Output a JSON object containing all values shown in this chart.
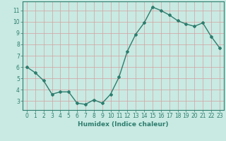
{
  "x": [
    0,
    1,
    2,
    3,
    4,
    5,
    6,
    7,
    8,
    9,
    10,
    11,
    12,
    13,
    14,
    15,
    16,
    17,
    18,
    19,
    20,
    21,
    22,
    23
  ],
  "y": [
    6.0,
    5.5,
    4.8,
    3.6,
    3.8,
    3.8,
    2.8,
    2.7,
    3.1,
    2.8,
    3.6,
    5.1,
    7.4,
    8.9,
    9.9,
    11.3,
    11.0,
    10.6,
    10.1,
    9.8,
    9.6,
    9.9,
    8.7,
    7.7
  ],
  "line_color": "#2e7d6e",
  "marker": "D",
  "marker_size": 2,
  "background_color": "#c8eae2",
  "grid_color": "#d4a0a0",
  "xlabel": "Humidex (Indice chaleur)",
  "xlim": [
    -0.5,
    23.5
  ],
  "ylim": [
    2.2,
    11.8
  ],
  "yticks": [
    3,
    4,
    5,
    6,
    7,
    8,
    9,
    10,
    11
  ],
  "xticks": [
    0,
    1,
    2,
    3,
    4,
    5,
    6,
    7,
    8,
    9,
    10,
    11,
    12,
    13,
    14,
    15,
    16,
    17,
    18,
    19,
    20,
    21,
    22,
    23
  ],
  "tick_fontsize": 5.5,
  "label_fontsize": 6.5,
  "line_width": 1.0
}
